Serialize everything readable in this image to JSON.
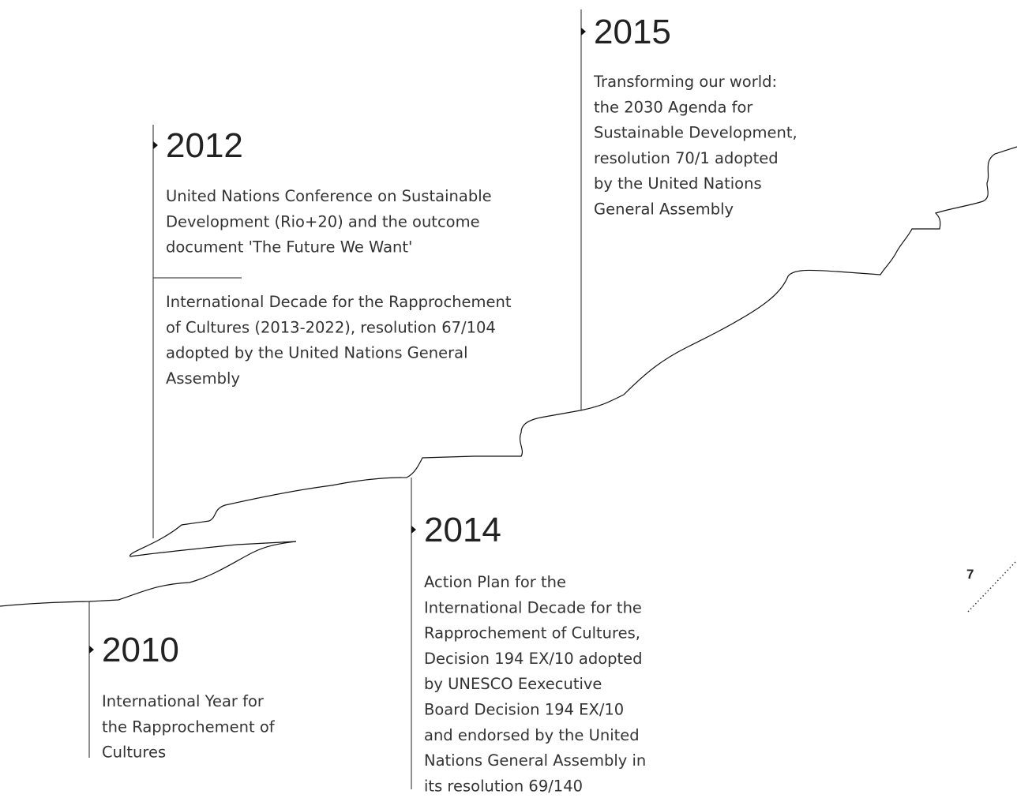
{
  "events": [
    {
      "year": "2010",
      "items": [
        [
          "International Year for",
          "the Rapprochement of",
          "Cultures"
        ]
      ]
    },
    {
      "year": "2012",
      "items": [
        [
          "United Nations Conference on Sustainable",
          "Development (Rio+20) and the outcome",
          "document 'The Future We Want'"
        ],
        [
          "International Decade for the Rapprochement",
          "of Cultures (2013-2022), resolution 67/104",
          "adopted by the United Nations General",
          "Assembly"
        ]
      ]
    },
    {
      "year": "2014",
      "items": [
        [
          "Action Plan for the",
          "International Decade for the",
          "Rapprochement of Cultures,",
          "Decision 194 EX/10 adopted",
          "by UNESCO Eexecutive",
          "Board Decision 194 EX/10",
          "and endorsed by the United",
          "Nations General Assembly in",
          "its resolution 69/140"
        ]
      ]
    },
    {
      "year": "2015",
      "items": [
        [
          "Transforming our world:",
          "the 2030 Agenda for",
          "Sustainable Development,",
          "resolution 70/1 adopted",
          "by the United Nations",
          "General Assembly"
        ]
      ]
    }
  ],
  "page_number": "7"
}
